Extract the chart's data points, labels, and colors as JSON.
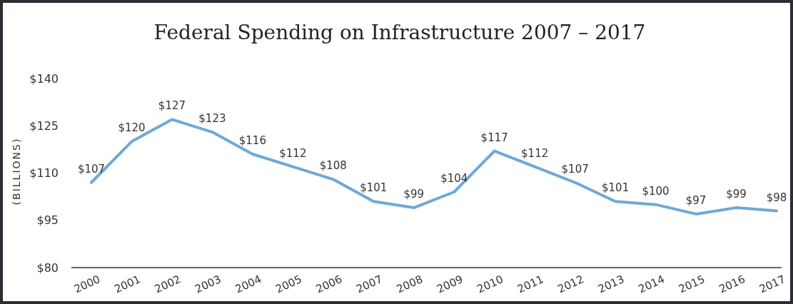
{
  "chart_data": {
    "type": "line",
    "title": "Federal Spending on Infrastructure 2007 – 2017",
    "ylabel": "(BILLIONS)",
    "categories": [
      "2000",
      "2001",
      "2002",
      "2003",
      "2004",
      "2005",
      "2006",
      "2007",
      "2008",
      "2009",
      "2010",
      "2011",
      "2012",
      "2013",
      "2014",
      "2015",
      "2016",
      "2017"
    ],
    "series": [
      {
        "color": "#6fa8d6",
        "values": [
          107,
          120,
          127,
          123,
          116,
          112,
          108,
          101,
          99,
          104,
          117,
          112,
          107,
          101,
          100,
          97,
          99,
          98
        ]
      }
    ],
    "ylim": [
      80,
      140
    ],
    "yticks": [
      {
        "value": 80,
        "label": "$80"
      },
      {
        "value": 95,
        "label": "$95"
      },
      {
        "value": 110,
        "label": "$110"
      },
      {
        "value": 125,
        "label": "$125"
      },
      {
        "value": 140,
        "label": "$140"
      }
    ],
    "value_labels": [
      "$107",
      "$120",
      "$127",
      "$123",
      "$116",
      "$112",
      "$108",
      "$101",
      "$99",
      "$104",
      "$117",
      "$112",
      "$107",
      "$101",
      "$100",
      "$97",
      "$99",
      "$98"
    ],
    "grid": false,
    "marker": "none",
    "line_style": "solid"
  }
}
